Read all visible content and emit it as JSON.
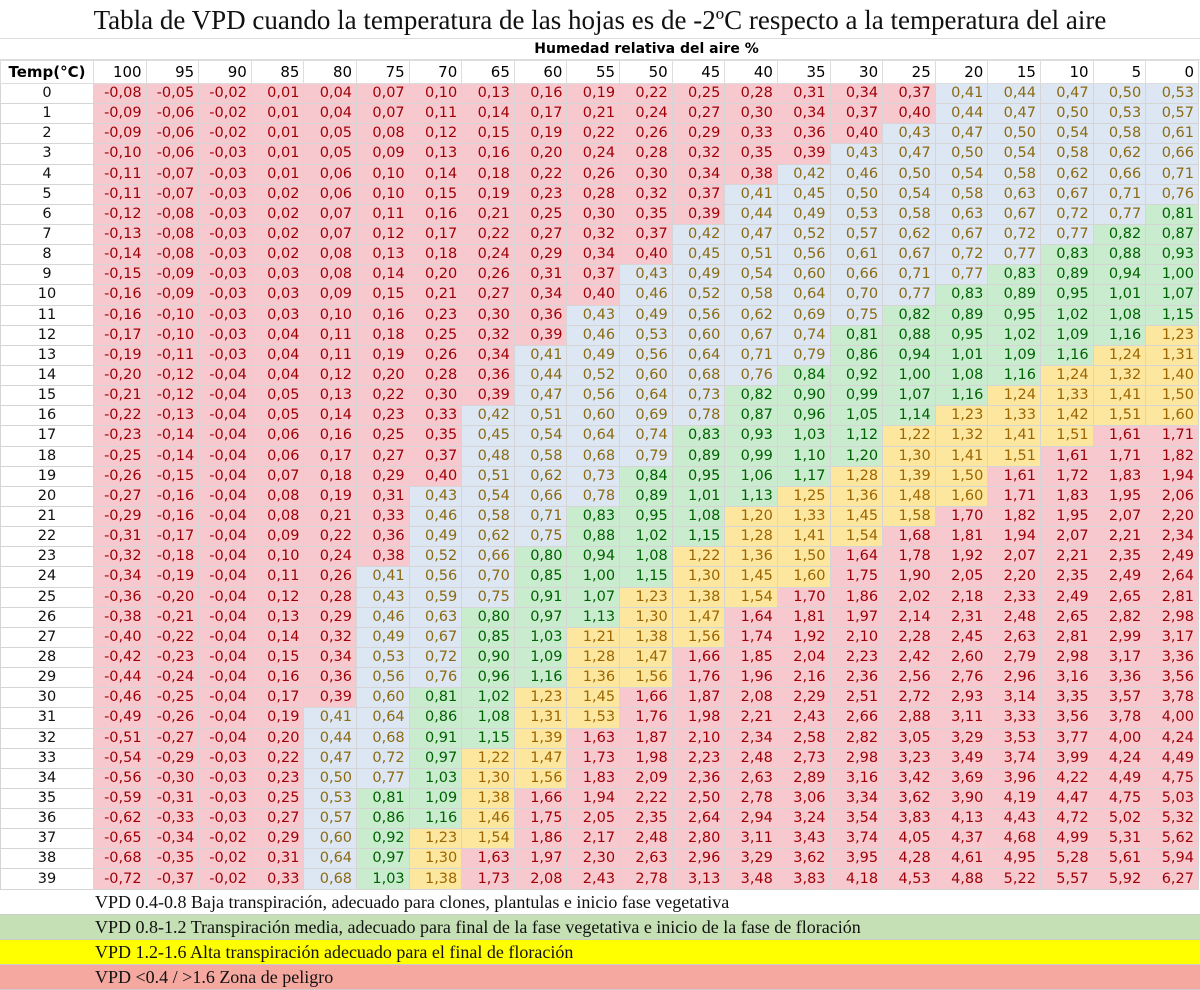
{
  "title": "Tabla de VPD cuando la temperatura de las hojas es de -2ºC respecto a la temperatura del aire",
  "humidity_header": "Humedad relativa del aire %",
  "temp_header": "Temp(°C)",
  "humidity_columns": [
    "100",
    "95",
    "90",
    "85",
    "80",
    "75",
    "70",
    "65",
    "60",
    "55",
    "50",
    "45",
    "40",
    "35",
    "30",
    "25",
    "20",
    "15",
    "10",
    "5",
    "0"
  ],
  "zone_colors": {
    "red": "#f7c9cf",
    "blue": "#dde7f3",
    "green": "#c9eccf",
    "yellow": "#fde79f"
  },
  "zone_overrides": [
    {
      "temp": "21",
      "humidity": "40",
      "zone": "yellow"
    }
  ],
  "rows": [
    {
      "temp": "0",
      "values": [
        "-0,08",
        "-0,05",
        "-0,02",
        "0,01",
        "0,04",
        "0,07",
        "0,10",
        "0,13",
        "0,16",
        "0,19",
        "0,22",
        "0,25",
        "0,28",
        "0,31",
        "0,34",
        "0,37",
        "0,41",
        "0,44",
        "0,47",
        "0,50",
        "0,53"
      ]
    },
    {
      "temp": "1",
      "values": [
        "-0,09",
        "-0,06",
        "-0,02",
        "0,01",
        "0,04",
        "0,07",
        "0,11",
        "0,14",
        "0,17",
        "0,21",
        "0,24",
        "0,27",
        "0,30",
        "0,34",
        "0,37",
        "0,40",
        "0,44",
        "0,47",
        "0,50",
        "0,53",
        "0,57"
      ]
    },
    {
      "temp": "2",
      "values": [
        "-0,09",
        "-0,06",
        "-0,02",
        "0,01",
        "0,05",
        "0,08",
        "0,12",
        "0,15",
        "0,19",
        "0,22",
        "0,26",
        "0,29",
        "0,33",
        "0,36",
        "0,40",
        "0,43",
        "0,47",
        "0,50",
        "0,54",
        "0,58",
        "0,61"
      ]
    },
    {
      "temp": "3",
      "values": [
        "-0,10",
        "-0,06",
        "-0,03",
        "0,01",
        "0,05",
        "0,09",
        "0,13",
        "0,16",
        "0,20",
        "0,24",
        "0,28",
        "0,32",
        "0,35",
        "0,39",
        "0,43",
        "0,47",
        "0,50",
        "0,54",
        "0,58",
        "0,62",
        "0,66"
      ]
    },
    {
      "temp": "4",
      "values": [
        "-0,11",
        "-0,07",
        "-0,03",
        "0,01",
        "0,06",
        "0,10",
        "0,14",
        "0,18",
        "0,22",
        "0,26",
        "0,30",
        "0,34",
        "0,38",
        "0,42",
        "0,46",
        "0,50",
        "0,54",
        "0,58",
        "0,62",
        "0,66",
        "0,71"
      ]
    },
    {
      "temp": "5",
      "values": [
        "-0,11",
        "-0,07",
        "-0,03",
        "0,02",
        "0,06",
        "0,10",
        "0,15",
        "0,19",
        "0,23",
        "0,28",
        "0,32",
        "0,37",
        "0,41",
        "0,45",
        "0,50",
        "0,54",
        "0,58",
        "0,63",
        "0,67",
        "0,71",
        "0,76"
      ]
    },
    {
      "temp": "6",
      "values": [
        "-0,12",
        "-0,08",
        "-0,03",
        "0,02",
        "0,07",
        "0,11",
        "0,16",
        "0,21",
        "0,25",
        "0,30",
        "0,35",
        "0,39",
        "0,44",
        "0,49",
        "0,53",
        "0,58",
        "0,63",
        "0,67",
        "0,72",
        "0,77",
        "0,81"
      ]
    },
    {
      "temp": "7",
      "values": [
        "-0,13",
        "-0,08",
        "-0,03",
        "0,02",
        "0,07",
        "0,12",
        "0,17",
        "0,22",
        "0,27",
        "0,32",
        "0,37",
        "0,42",
        "0,47",
        "0,52",
        "0,57",
        "0,62",
        "0,67",
        "0,72",
        "0,77",
        "0,82",
        "0,87"
      ]
    },
    {
      "temp": "8",
      "values": [
        "-0,14",
        "-0,08",
        "-0,03",
        "0,02",
        "0,08",
        "0,13",
        "0,18",
        "0,24",
        "0,29",
        "0,34",
        "0,40",
        "0,45",
        "0,51",
        "0,56",
        "0,61",
        "0,67",
        "0,72",
        "0,77",
        "0,83",
        "0,88",
        "0,93"
      ]
    },
    {
      "temp": "9",
      "values": [
        "-0,15",
        "-0,09",
        "-0,03",
        "0,03",
        "0,08",
        "0,14",
        "0,20",
        "0,26",
        "0,31",
        "0,37",
        "0,43",
        "0,49",
        "0,54",
        "0,60",
        "0,66",
        "0,71",
        "0,77",
        "0,83",
        "0,89",
        "0,94",
        "1,00"
      ]
    },
    {
      "temp": "10",
      "values": [
        "-0,16",
        "-0,09",
        "-0,03",
        "0,03",
        "0,09",
        "0,15",
        "0,21",
        "0,27",
        "0,34",
        "0,40",
        "0,46",
        "0,52",
        "0,58",
        "0,64",
        "0,70",
        "0,77",
        "0,83",
        "0,89",
        "0,95",
        "1,01",
        "1,07"
      ]
    },
    {
      "temp": "11",
      "values": [
        "-0,16",
        "-0,10",
        "-0,03",
        "0,03",
        "0,10",
        "0,16",
        "0,23",
        "0,30",
        "0,36",
        "0,43",
        "0,49",
        "0,56",
        "0,62",
        "0,69",
        "0,75",
        "0,82",
        "0,89",
        "0,95",
        "1,02",
        "1,08",
        "1,15"
      ]
    },
    {
      "temp": "12",
      "values": [
        "-0,17",
        "-0,10",
        "-0,03",
        "0,04",
        "0,11",
        "0,18",
        "0,25",
        "0,32",
        "0,39",
        "0,46",
        "0,53",
        "0,60",
        "0,67",
        "0,74",
        "0,81",
        "0,88",
        "0,95",
        "1,02",
        "1,09",
        "1,16",
        "1,23"
      ]
    },
    {
      "temp": "13",
      "values": [
        "-0,19",
        "-0,11",
        "-0,03",
        "0,04",
        "0,11",
        "0,19",
        "0,26",
        "0,34",
        "0,41",
        "0,49",
        "0,56",
        "0,64",
        "0,71",
        "0,79",
        "0,86",
        "0,94",
        "1,01",
        "1,09",
        "1,16",
        "1,24",
        "1,31"
      ]
    },
    {
      "temp": "14",
      "values": [
        "-0,20",
        "-0,12",
        "-0,04",
        "0,04",
        "0,12",
        "0,20",
        "0,28",
        "0,36",
        "0,44",
        "0,52",
        "0,60",
        "0,68",
        "0,76",
        "0,84",
        "0,92",
        "1,00",
        "1,08",
        "1,16",
        "1,24",
        "1,32",
        "1,40"
      ]
    },
    {
      "temp": "15",
      "values": [
        "-0,21",
        "-0,12",
        "-0,04",
        "0,05",
        "0,13",
        "0,22",
        "0,30",
        "0,39",
        "0,47",
        "0,56",
        "0,64",
        "0,73",
        "0,82",
        "0,90",
        "0,99",
        "1,07",
        "1,16",
        "1,24",
        "1,33",
        "1,41",
        "1,50"
      ]
    },
    {
      "temp": "16",
      "values": [
        "-0,22",
        "-0,13",
        "-0,04",
        "0,05",
        "0,14",
        "0,23",
        "0,33",
        "0,42",
        "0,51",
        "0,60",
        "0,69",
        "0,78",
        "0,87",
        "0,96",
        "1,05",
        "1,14",
        "1,23",
        "1,33",
        "1,42",
        "1,51",
        "1,60"
      ]
    },
    {
      "temp": "17",
      "values": [
        "-0,23",
        "-0,14",
        "-0,04",
        "0,06",
        "0,16",
        "0,25",
        "0,35",
        "0,45",
        "0,54",
        "0,64",
        "0,74",
        "0,83",
        "0,93",
        "1,03",
        "1,12",
        "1,22",
        "1,32",
        "1,41",
        "1,51",
        "1,61",
        "1,71"
      ]
    },
    {
      "temp": "18",
      "values": [
        "-0,25",
        "-0,14",
        "-0,04",
        "0,06",
        "0,17",
        "0,27",
        "0,37",
        "0,48",
        "0,58",
        "0,68",
        "0,79",
        "0,89",
        "0,99",
        "1,10",
        "1,20",
        "1,30",
        "1,41",
        "1,51",
        "1,61",
        "1,71",
        "1,82"
      ]
    },
    {
      "temp": "19",
      "values": [
        "-0,26",
        "-0,15",
        "-0,04",
        "0,07",
        "0,18",
        "0,29",
        "0,40",
        "0,51",
        "0,62",
        "0,73",
        "0,84",
        "0,95",
        "1,06",
        "1,17",
        "1,28",
        "1,39",
        "1,50",
        "1,61",
        "1,72",
        "1,83",
        "1,94"
      ]
    },
    {
      "temp": "20",
      "values": [
        "-0,27",
        "-0,16",
        "-0,04",
        "0,08",
        "0,19",
        "0,31",
        "0,43",
        "0,54",
        "0,66",
        "0,78",
        "0,89",
        "1,01",
        "1,13",
        "1,25",
        "1,36",
        "1,48",
        "1,60",
        "1,71",
        "1,83",
        "1,95",
        "2,06"
      ]
    },
    {
      "temp": "21",
      "values": [
        "-0,29",
        "-0,16",
        "-0,04",
        "0,08",
        "0,21",
        "0,33",
        "0,46",
        "0,58",
        "0,71",
        "0,83",
        "0,95",
        "1,08",
        "1,20",
        "1,33",
        "1,45",
        "1,58",
        "1,70",
        "1,82",
        "1,95",
        "2,07",
        "2,20"
      ]
    },
    {
      "temp": "22",
      "values": [
        "-0,31",
        "-0,17",
        "-0,04",
        "0,09",
        "0,22",
        "0,36",
        "0,49",
        "0,62",
        "0,75",
        "0,88",
        "1,02",
        "1,15",
        "1,28",
        "1,41",
        "1,54",
        "1,68",
        "1,81",
        "1,94",
        "2,07",
        "2,21",
        "2,34"
      ]
    },
    {
      "temp": "23",
      "values": [
        "-0,32",
        "-0,18",
        "-0,04",
        "0,10",
        "0,24",
        "0,38",
        "0,52",
        "0,66",
        "0,80",
        "0,94",
        "1,08",
        "1,22",
        "1,36",
        "1,50",
        "1,64",
        "1,78",
        "1,92",
        "2,07",
        "2,21",
        "2,35",
        "2,49"
      ]
    },
    {
      "temp": "24",
      "values": [
        "-0,34",
        "-0,19",
        "-0,04",
        "0,11",
        "0,26",
        "0,41",
        "0,56",
        "0,70",
        "0,85",
        "1,00",
        "1,15",
        "1,30",
        "1,45",
        "1,60",
        "1,75",
        "1,90",
        "2,05",
        "2,20",
        "2,35",
        "2,49",
        "2,64"
      ]
    },
    {
      "temp": "25",
      "values": [
        "-0,36",
        "-0,20",
        "-0,04",
        "0,12",
        "0,28",
        "0,43",
        "0,59",
        "0,75",
        "0,91",
        "1,07",
        "1,23",
        "1,38",
        "1,54",
        "1,70",
        "1,86",
        "2,02",
        "2,18",
        "2,33",
        "2,49",
        "2,65",
        "2,81"
      ]
    },
    {
      "temp": "26",
      "values": [
        "-0,38",
        "-0,21",
        "-0,04",
        "0,13",
        "0,29",
        "0,46",
        "0,63",
        "0,80",
        "0,97",
        "1,13",
        "1,30",
        "1,47",
        "1,64",
        "1,81",
        "1,97",
        "2,14",
        "2,31",
        "2,48",
        "2,65",
        "2,82",
        "2,98"
      ]
    },
    {
      "temp": "27",
      "values": [
        "-0,40",
        "-0,22",
        "-0,04",
        "0,14",
        "0,32",
        "0,49",
        "0,67",
        "0,85",
        "1,03",
        "1,21",
        "1,38",
        "1,56",
        "1,74",
        "1,92",
        "2,10",
        "2,28",
        "2,45",
        "2,63",
        "2,81",
        "2,99",
        "3,17"
      ]
    },
    {
      "temp": "28",
      "values": [
        "-0,42",
        "-0,23",
        "-0,04",
        "0,15",
        "0,34",
        "0,53",
        "0,72",
        "0,90",
        "1,09",
        "1,28",
        "1,47",
        "1,66",
        "1,85",
        "2,04",
        "2,23",
        "2,42",
        "2,60",
        "2,79",
        "2,98",
        "3,17",
        "3,36"
      ]
    },
    {
      "temp": "29",
      "values": [
        "-0,44",
        "-0,24",
        "-0,04",
        "0,16",
        "0,36",
        "0,56",
        "0,76",
        "0,96",
        "1,16",
        "1,36",
        "1,56",
        "1,76",
        "1,96",
        "2,16",
        "2,36",
        "2,56",
        "2,76",
        "2,96",
        "3,16",
        "3,36",
        "3,56"
      ]
    },
    {
      "temp": "30",
      "values": [
        "-0,46",
        "-0,25",
        "-0,04",
        "0,17",
        "0,39",
        "0,60",
        "0,81",
        "1,02",
        "1,23",
        "1,45",
        "1,66",
        "1,87",
        "2,08",
        "2,29",
        "2,51",
        "2,72",
        "2,93",
        "3,14",
        "3,35",
        "3,57",
        "3,78"
      ]
    },
    {
      "temp": "31",
      "values": [
        "-0,49",
        "-0,26",
        "-0,04",
        "0,19",
        "0,41",
        "0,64",
        "0,86",
        "1,08",
        "1,31",
        "1,53",
        "1,76",
        "1,98",
        "2,21",
        "2,43",
        "2,66",
        "2,88",
        "3,11",
        "3,33",
        "3,56",
        "3,78",
        "4,00"
      ]
    },
    {
      "temp": "32",
      "values": [
        "-0,51",
        "-0,27",
        "-0,04",
        "0,20",
        "0,44",
        "0,68",
        "0,91",
        "1,15",
        "1,39",
        "1,63",
        "1,87",
        "2,10",
        "2,34",
        "2,58",
        "2,82",
        "3,05",
        "3,29",
        "3,53",
        "3,77",
        "4,00",
        "4,24"
      ]
    },
    {
      "temp": "33",
      "values": [
        "-0,54",
        "-0,29",
        "-0,03",
        "0,22",
        "0,47",
        "0,72",
        "0,97",
        "1,22",
        "1,47",
        "1,73",
        "1,98",
        "2,23",
        "2,48",
        "2,73",
        "2,98",
        "3,23",
        "3,49",
        "3,74",
        "3,99",
        "4,24",
        "4,49"
      ]
    },
    {
      "temp": "34",
      "values": [
        "-0,56",
        "-0,30",
        "-0,03",
        "0,23",
        "0,50",
        "0,77",
        "1,03",
        "1,30",
        "1,56",
        "1,83",
        "2,09",
        "2,36",
        "2,63",
        "2,89",
        "3,16",
        "3,42",
        "3,69",
        "3,96",
        "4,22",
        "4,49",
        "4,75"
      ]
    },
    {
      "temp": "35",
      "values": [
        "-0,59",
        "-0,31",
        "-0,03",
        "0,25",
        "0,53",
        "0,81",
        "1,09",
        "1,38",
        "1,66",
        "1,94",
        "2,22",
        "2,50",
        "2,78",
        "3,06",
        "3,34",
        "3,62",
        "3,90",
        "4,19",
        "4,47",
        "4,75",
        "5,03"
      ]
    },
    {
      "temp": "36",
      "values": [
        "-0,62",
        "-0,33",
        "-0,03",
        "0,27",
        "0,57",
        "0,86",
        "1,16",
        "1,46",
        "1,75",
        "2,05",
        "2,35",
        "2,64",
        "2,94",
        "3,24",
        "3,54",
        "3,83",
        "4,13",
        "4,43",
        "4,72",
        "5,02",
        "5,32"
      ]
    },
    {
      "temp": "37",
      "values": [
        "-0,65",
        "-0,34",
        "-0,02",
        "0,29",
        "0,60",
        "0,92",
        "1,23",
        "1,54",
        "1,86",
        "2,17",
        "2,48",
        "2,80",
        "3,11",
        "3,43",
        "3,74",
        "4,05",
        "4,37",
        "4,68",
        "4,99",
        "5,31",
        "5,62"
      ]
    },
    {
      "temp": "38",
      "values": [
        "-0,68",
        "-0,35",
        "-0,02",
        "0,31",
        "0,64",
        "0,97",
        "1,30",
        "1,63",
        "1,97",
        "2,30",
        "2,63",
        "2,96",
        "3,29",
        "3,62",
        "3,95",
        "4,28",
        "4,61",
        "4,95",
        "5,28",
        "5,61",
        "5,94"
      ]
    },
    {
      "temp": "39",
      "values": [
        "-0,72",
        "-0,37",
        "-0,02",
        "0,33",
        "0,68",
        "1,03",
        "1,38",
        "1,73",
        "2,08",
        "2,43",
        "2,78",
        "3,13",
        "3,48",
        "3,83",
        "4,18",
        "4,53",
        "4,88",
        "5,22",
        "5,57",
        "5,92",
        "6,27"
      ]
    }
  ],
  "legend": [
    {
      "text": "VPD 0.4-0.8 Baja transpiración, adecuado para clones, plantulas e inicio fase vegetativa",
      "color": "#ffffff"
    },
    {
      "text": "VPD 0.8-1.2 Transpiración media, adecuado para final de la fase vegetativa e inicio de la fase de floración",
      "color": "#c5e0b4"
    },
    {
      "text": "VPD 1.2-1.6 Alta transpiración adecuado para el final de floración",
      "color": "#ffff00"
    },
    {
      "text": "VPD <0.4 / >1.6 Zona de peligro",
      "color": "#f4a89f"
    }
  ]
}
